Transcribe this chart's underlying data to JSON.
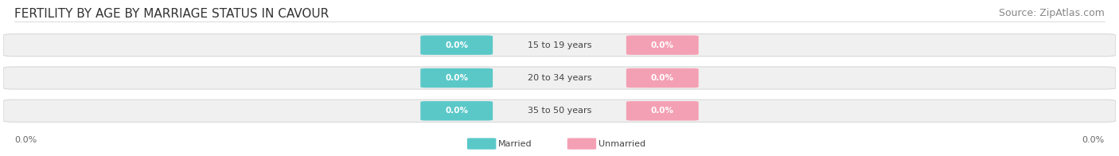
{
  "title": "FERTILITY BY AGE BY MARRIAGE STATUS IN CAVOUR",
  "source": "Source: ZipAtlas.com",
  "categories": [
    "15 to 19 years",
    "20 to 34 years",
    "35 to 50 years"
  ],
  "married_values": [
    0.0,
    0.0,
    0.0
  ],
  "unmarried_values": [
    0.0,
    0.0,
    0.0
  ],
  "married_color": "#5bc8c8",
  "unmarried_color": "#f4a0b4",
  "bar_bg_color": "#f0f0f0",
  "bar_border_color": "#d8d8d8",
  "title_fontsize": 11,
  "source_fontsize": 9,
  "label_fontsize": 8,
  "axis_label_value": "0.0%",
  "background_color": "#ffffff"
}
